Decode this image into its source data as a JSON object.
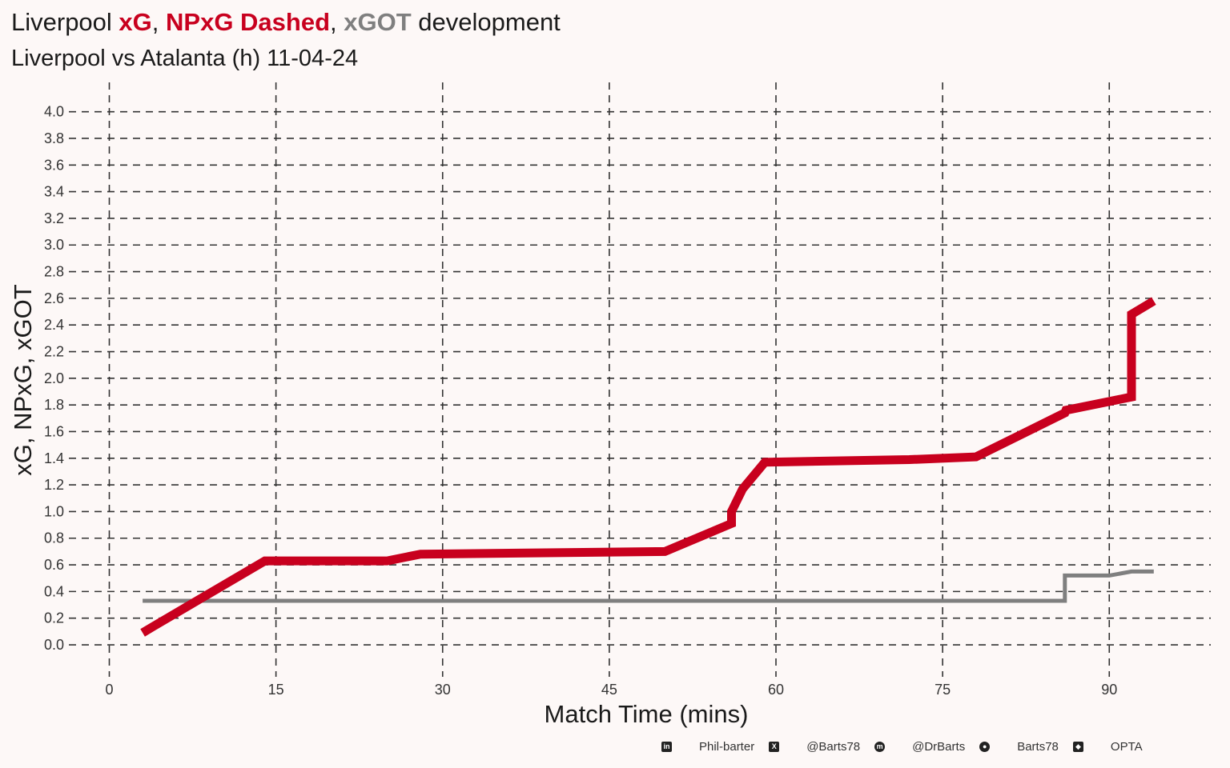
{
  "title": {
    "prefix": "Liverpool ",
    "xg": "xG",
    "sep1": ", ",
    "npxg": "NPxG Dashed",
    "sep2": ", ",
    "xgot": "xGOT",
    "suffix": " development"
  },
  "subtitle": "Liverpool vs Atalanta (h) 11-04-24",
  "colors": {
    "xg": "#c8001e",
    "xgot": "#7f7f7f",
    "background": "#fdf8f7"
  },
  "footer": {
    "items": [
      {
        "icon": "linkedin-icon",
        "glyph": "in",
        "label": "Phil-barter"
      },
      {
        "icon": "x-icon",
        "glyph": "X",
        "label": "@Barts78"
      },
      {
        "icon": "mastodon-icon",
        "glyph": "m",
        "label": "@DrBarts"
      },
      {
        "icon": "github-icon",
        "glyph": "●",
        "label": "Barts78"
      },
      {
        "icon": "dropbox-icon",
        "glyph": "◆",
        "label": "OPTA"
      }
    ]
  },
  "chart_data": {
    "type": "line",
    "xlabel": "Match Time (mins)",
    "ylabel": "xG, NPxG, xGOT",
    "xlim": [
      -4,
      100
    ],
    "ylim": [
      -0.18,
      4.1
    ],
    "xticks": [
      0,
      15,
      30,
      45,
      60,
      75,
      90
    ],
    "yticks": [
      0.0,
      0.2,
      0.4,
      0.6,
      0.8,
      1.0,
      1.2,
      1.4,
      1.6,
      1.8,
      2.0,
      2.2,
      2.4,
      2.6,
      2.8,
      3.0,
      3.2,
      3.4,
      3.6,
      3.8,
      4.0
    ],
    "grid": true,
    "series": [
      {
        "name": "xG",
        "x": [
          3,
          4,
          14,
          25,
          28,
          50,
          56,
          56,
          57,
          59,
          72,
          78,
          86,
          86.1,
          92,
          92,
          94
        ],
        "y": [
          0.09,
          0.14,
          0.63,
          0.63,
          0.68,
          0.7,
          0.91,
          1.0,
          1.17,
          1.37,
          1.39,
          1.41,
          1.74,
          1.76,
          1.86,
          2.48,
          2.58
        ]
      },
      {
        "name": "xGOT",
        "x": [
          3,
          86,
          86,
          90,
          92,
          94
        ],
        "y": [
          0.33,
          0.33,
          0.52,
          0.52,
          0.55,
          0.55
        ]
      }
    ]
  }
}
